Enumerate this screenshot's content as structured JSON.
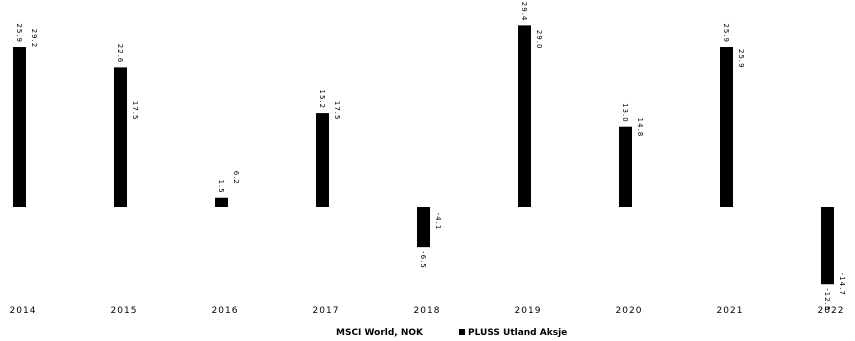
{
  "chart_data": {
    "type": "bar",
    "categories": [
      "2014",
      "2015",
      "2016",
      "2017",
      "2018",
      "2019",
      "2020",
      "2021",
      "2022"
    ],
    "series": [
      {
        "name": "MSCI World, NOK",
        "values": [
          25.9,
          22.6,
          1.5,
          15.2,
          -6.5,
          29.4,
          13.0,
          25.9,
          -12.5
        ],
        "color": "#000000"
      },
      {
        "name": "PLUSS Utland Aksje",
        "values": [
          29.2,
          17.5,
          6.2,
          17.5,
          -4.1,
          29.0,
          14.8,
          25.9,
          -14.7
        ],
        "color": "#ffffff"
      }
    ],
    "value_labels": {
      "MSCI World, NOK": [
        "25.9",
        "22.6",
        "1.5",
        "15.2",
        "-6.5",
        "29.4",
        "13.0",
        "25.9",
        "-12.5"
      ],
      "PLUSS Utland Aksje": [
        "29.2",
        "17.5",
        "6.2",
        "17.5",
        "-4.1",
        "29.0",
        "14.8",
        "25.9",
        "-14.7"
      ]
    },
    "title": "",
    "xlabel": "",
    "ylabel": "",
    "ylim": [
      -15,
      30
    ],
    "grid": false,
    "legend": "bottom-center"
  }
}
